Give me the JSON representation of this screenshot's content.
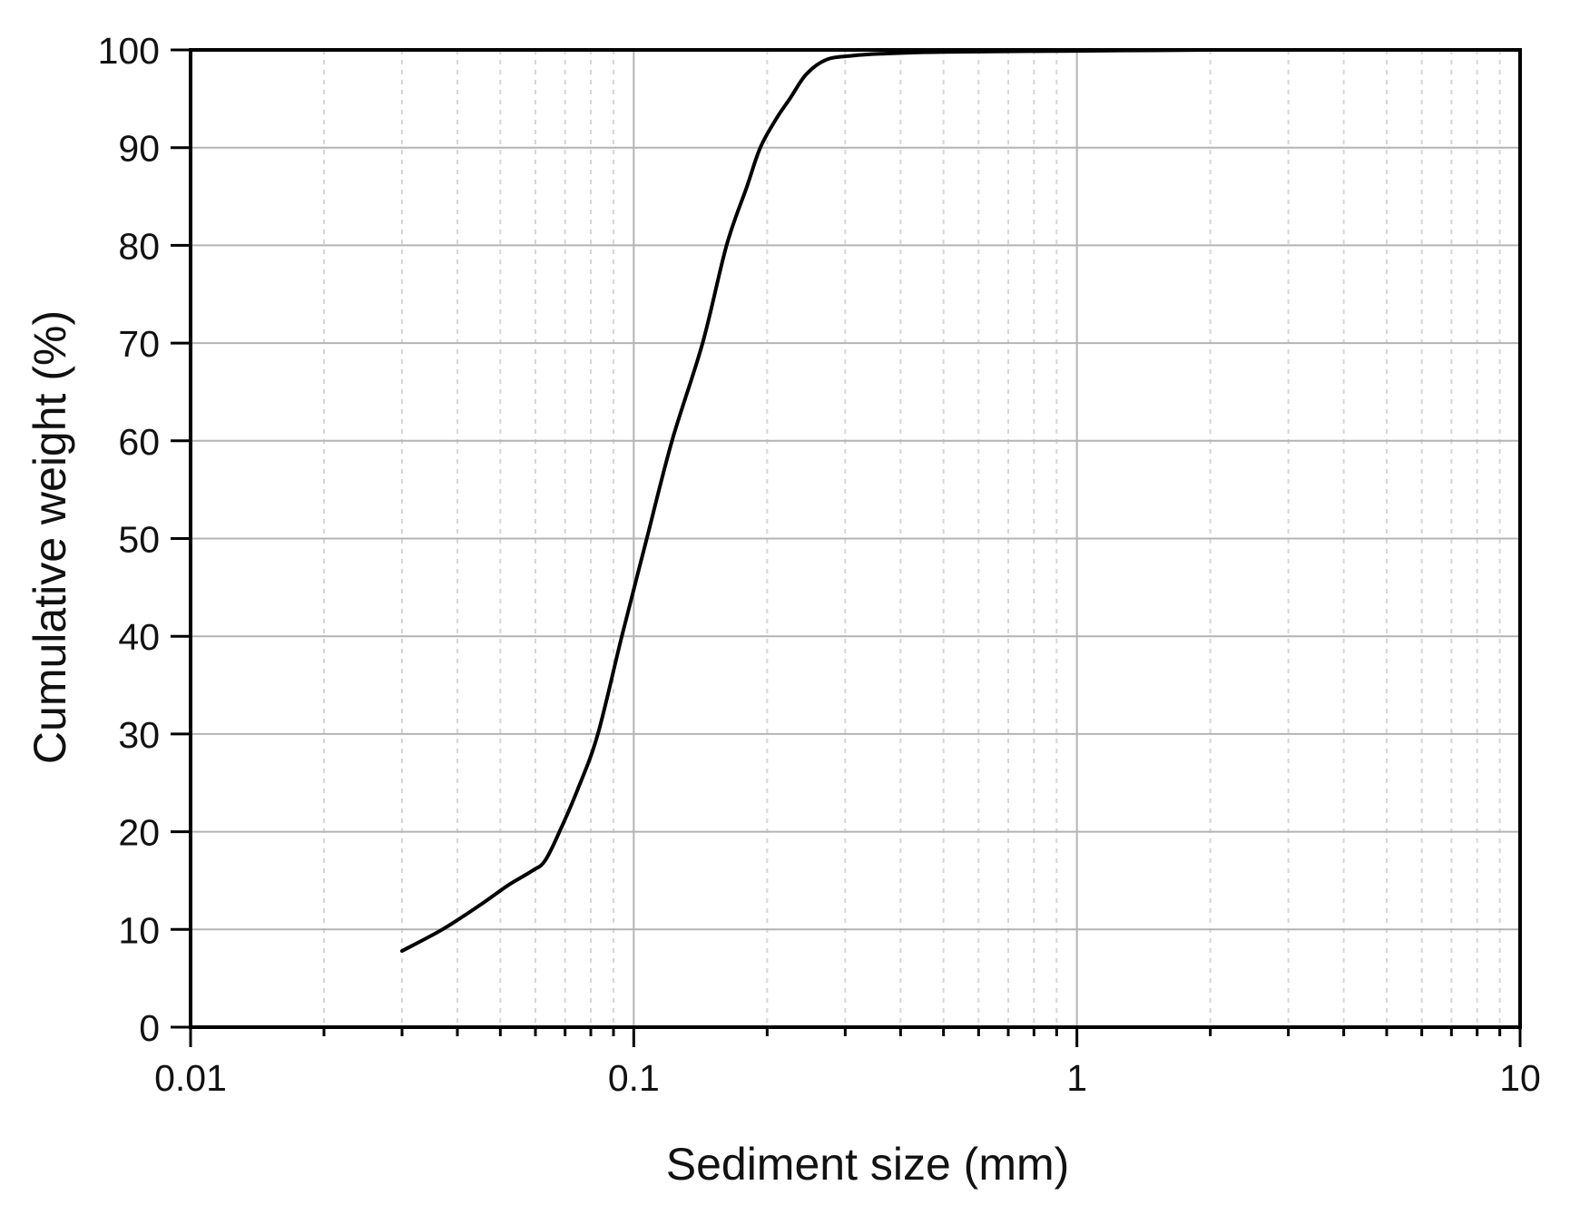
{
  "chart_data": {
    "type": "line",
    "title": "",
    "xlabel": "Sediment size (mm)",
    "ylabel": "Cumulative weight (%)",
    "xscale": "log",
    "xlim": [
      0.01,
      10
    ],
    "ylim": [
      0,
      100
    ],
    "x_ticks": [
      0.01,
      0.1,
      1,
      10
    ],
    "x_tick_labels": [
      "0.01",
      "0.1",
      "1",
      "10"
    ],
    "y_ticks": [
      0,
      10,
      20,
      30,
      40,
      50,
      60,
      70,
      80,
      90,
      100
    ],
    "y_tick_labels": [
      "0",
      "10",
      "20",
      "30",
      "40",
      "50",
      "60",
      "70",
      "80",
      "90",
      "100"
    ],
    "grid": {
      "major": true,
      "minor_x": true
    },
    "legend": null,
    "series": [
      {
        "name": "Cumulative weight",
        "color": "#000000",
        "x": [
          0.03,
          0.037,
          0.045,
          0.052,
          0.059,
          0.063,
          0.068,
          0.075,
          0.083,
          0.094,
          0.107,
          0.122,
          0.143,
          0.162,
          0.18,
          0.193,
          0.21,
          0.225,
          0.245,
          0.272,
          0.31,
          0.36,
          0.5,
          1.0,
          2.0,
          3.0
        ],
        "y": [
          7.8,
          10,
          12.5,
          14.5,
          16,
          17,
          20,
          24.5,
          30,
          40,
          50,
          60,
          70,
          80,
          86,
          90,
          93,
          95,
          97.5,
          99.0,
          99.4,
          99.6,
          99.8,
          99.9,
          100,
          100
        ]
      }
    ]
  },
  "colors": {
    "axis": "#000000",
    "major_grid": "#b4b4b4",
    "minor_grid": "#d6d6d6",
    "curve": "#000000",
    "background": "#ffffff"
  }
}
